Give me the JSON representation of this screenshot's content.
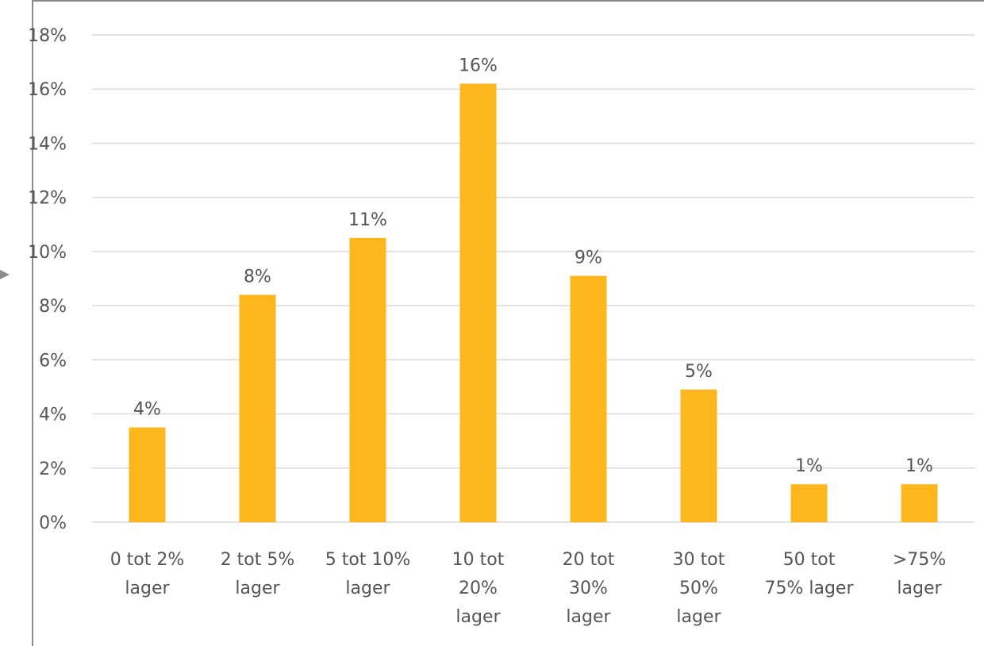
{
  "chart_data": {
    "type": "bar",
    "title": "",
    "xlabel": "",
    "ylabel": "",
    "categories": [
      [
        "0 tot 2%",
        "lager"
      ],
      [
        "2 tot 5%",
        "lager"
      ],
      [
        "5 tot 10%",
        "lager"
      ],
      [
        "10 tot",
        "20%",
        "lager"
      ],
      [
        "20 tot",
        "30%",
        "lager"
      ],
      [
        "30 tot",
        "50%",
        "lager"
      ],
      [
        "50 tot",
        "75% lager"
      ],
      [
        ">75%",
        "lager"
      ]
    ],
    "values": [
      3.5,
      8.4,
      10.5,
      16.2,
      9.1,
      4.9,
      1.4,
      1.4
    ],
    "data_labels": [
      "4%",
      "8%",
      "11%",
      "16%",
      "9%",
      "5%",
      "1%",
      "1%"
    ],
    "ylim": [
      0,
      18
    ],
    "yticks": [
      0,
      2,
      4,
      6,
      8,
      10,
      12,
      14,
      16,
      18
    ],
    "ytick_labels": [
      "0%",
      "2%",
      "4%",
      "6%",
      "8%",
      "10%",
      "12%",
      "14%",
      "16%",
      "18%"
    ],
    "grid": true,
    "legend": "none",
    "colors": {
      "bar": "#FDB71C",
      "grid": "#D9D9D9",
      "text": "#555555",
      "frame": "#8C8C8C"
    }
  }
}
